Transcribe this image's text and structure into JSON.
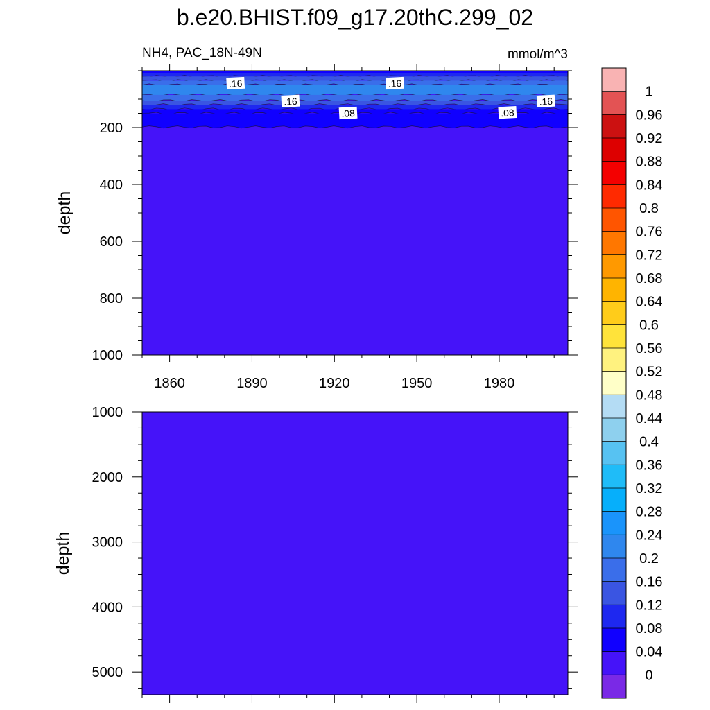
{
  "title": "b.e20.BHIST.f09_g17.20thC.299_02",
  "subtitle_left": "NH4, PAC_18N-49N",
  "subtitle_right": "mmol/m^3",
  "chart_data": [
    {
      "type": "heatmap",
      "panel": "upper",
      "ylabel": "depth",
      "xlabel": "",
      "xlim": [
        1850,
        2005
      ],
      "ylim": [
        1000,
        0
      ],
      "x_ticks": [
        1860,
        1890,
        1920,
        1950,
        1980
      ],
      "y_ticks": [
        200,
        400,
        600,
        800,
        1000
      ],
      "background_value": 0.02,
      "layers": [
        {
          "top": 0,
          "bottom": 8,
          "value": 0.06
        },
        {
          "top": 8,
          "bottom": 20,
          "value": 0.1
        },
        {
          "top": 20,
          "bottom": 35,
          "value": 0.14
        },
        {
          "top": 35,
          "bottom": 50,
          "value": 0.18
        },
        {
          "top": 50,
          "bottom": 85,
          "value": 0.22
        },
        {
          "top": 85,
          "bottom": 105,
          "value": 0.18
        },
        {
          "top": 105,
          "bottom": 120,
          "value": 0.14
        },
        {
          "top": 120,
          "bottom": 135,
          "value": 0.1
        },
        {
          "top": 135,
          "bottom": 150,
          "value": 0.06
        },
        {
          "top": 150,
          "bottom": 198,
          "value": 0.06
        }
      ],
      "contour_labels": [
        {
          "text": ".16",
          "x": 1884,
          "depth": 45
        },
        {
          "text": ".16",
          "x": 1942,
          "depth": 45
        },
        {
          "text": ".16",
          "x": 1904,
          "depth": 108
        },
        {
          "text": ".08",
          "x": 1925,
          "depth": 150
        },
        {
          "text": ".08",
          "x": 1983,
          "depth": 148
        },
        {
          "text": ".16",
          "x": 1997,
          "depth": 108
        }
      ]
    },
    {
      "type": "heatmap",
      "panel": "lower",
      "ylabel": "depth",
      "xlabel": "",
      "xlim": [
        1850,
        2005
      ],
      "ylim": [
        5350,
        1000
      ],
      "x_ticks": [
        1860,
        1890,
        1920,
        1950,
        1980
      ],
      "y_ticks": [
        1000,
        2000,
        3000,
        4000,
        5000
      ],
      "background_value": 0.02
    }
  ],
  "colorbar": {
    "labels": [
      "1",
      "0.96",
      "0.92",
      "0.88",
      "0.84",
      "0.8",
      "0.76",
      "0.72",
      "0.68",
      "0.64",
      "0.6",
      "0.56",
      "0.52",
      "0.48",
      "0.44",
      "0.4",
      "0.36",
      "0.32",
      "0.28",
      "0.24",
      "0.2",
      "0.16",
      "0.12",
      "0.08",
      "0.04",
      "0"
    ],
    "colors": [
      "#F9B3B3",
      "#E35354",
      "#CC1111",
      "#DD0000",
      "#F40000",
      "#FF2A00",
      "#FF5500",
      "#FF7700",
      "#FF9900",
      "#FFB400",
      "#FFCC1A",
      "#FFE33A",
      "#FFF27F",
      "#FFFFC8",
      "#B4DCF4",
      "#8ED0EE",
      "#57C2F2",
      "#1FBCF8",
      "#06AFFB",
      "#1A94FB",
      "#2F87EE",
      "#3A6EEA",
      "#3A55E2",
      "#1E28F0",
      "#1000FF",
      "#4513F9",
      "#7A29E6"
    ]
  }
}
